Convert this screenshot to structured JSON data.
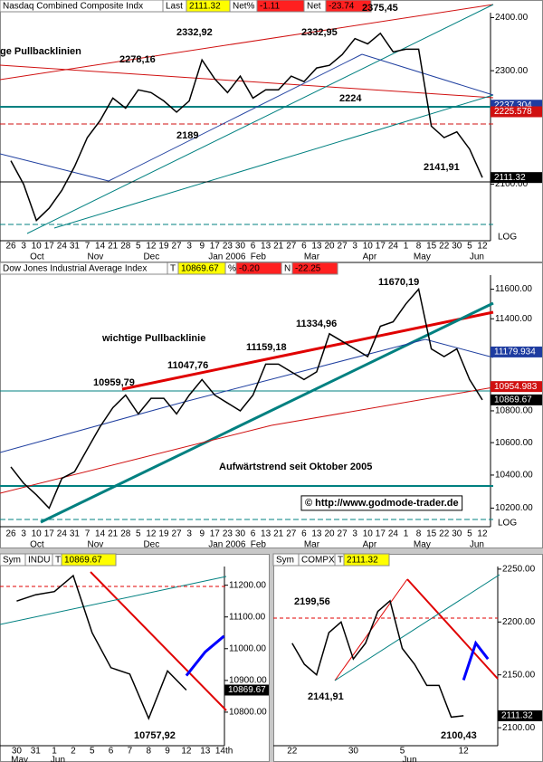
{
  "chart_data": [
    {
      "type": "line",
      "yscale": "log",
      "scale_label": "LOG",
      "header": [
        "Nasdaq Combined Composite Indx",
        "Last",
        "2111.32",
        "Net%",
        "-1.11",
        "Net",
        "-23.74"
      ],
      "categories": [
        "26",
        "3",
        "10",
        "17",
        "24",
        "31",
        "7",
        "14",
        "21",
        "28",
        "5",
        "12",
        "19",
        "27",
        "3",
        "9",
        "17",
        "23",
        "30",
        "6",
        "13",
        "21",
        "27",
        "6",
        "13",
        "20",
        "27",
        "3",
        "10",
        "17",
        "24",
        "1",
        "8",
        "15",
        "22",
        "30",
        "5",
        "12"
      ],
      "months": [
        "Oct",
        "Nov",
        "Dec",
        "Jan 2006",
        "Feb",
        "Mar",
        "Apr",
        "May",
        "Jun"
      ],
      "series": [
        {
          "color": "#000000",
          "values": [
            2140,
            2100,
            2040,
            2060,
            2090,
            2130,
            2180,
            2210,
            2250,
            2232,
            2265,
            2260,
            2245,
            2225,
            2245,
            2320,
            2285,
            2260,
            2290,
            2250,
            2265,
            2265,
            2290,
            2280,
            2305,
            2310,
            2330,
            2360,
            2350,
            2370,
            2335,
            2340,
            2340,
            2200,
            2180,
            2190,
            2160,
            2111.32
          ]
        }
      ],
      "ylim": [
        2010,
        2406
      ],
      "yticks": [
        {
          "value": 2100,
          "label": "2100.00"
        },
        {
          "value": 2300,
          "label": "2300.00"
        },
        {
          "value": 2400,
          "label": "2400.00"
        }
      ],
      "markers": [
        {
          "value": 2237.304,
          "color": "#1e3ca0"
        },
        {
          "value": 2225.578,
          "color": "#d01010"
        },
        {
          "value": 2111.32,
          "color": "#000000"
        }
      ],
      "annotations": [
        "ge Pullbacklinien",
        "2278,16",
        "2332,92",
        "2332,95",
        "2375,45",
        "2224",
        "2189",
        "2141,91"
      ]
    },
    {
      "type": "line",
      "yscale": "log",
      "scale_label": "LOG",
      "header": [
        "Dow Jones Industrial Average Index",
        "T",
        "10869.67",
        "%",
        "-0.20",
        "N",
        "-22.25"
      ],
      "categories": [
        "26",
        "3",
        "10",
        "17",
        "24",
        "31",
        "7",
        "14",
        "21",
        "28",
        "5",
        "12",
        "19",
        "27",
        "3",
        "9",
        "17",
        "23",
        "30",
        "6",
        "13",
        "21",
        "27",
        "6",
        "13",
        "20",
        "27",
        "3",
        "10",
        "17",
        "24",
        "1",
        "8",
        "15",
        "22",
        "30",
        "5",
        "12"
      ],
      "months": [
        "Oct",
        "Nov",
        "Dec",
        "Jan 2006",
        "Feb",
        "Mar",
        "Apr",
        "May",
        "Jun"
      ],
      "series": [
        {
          "color": "#000000",
          "values": [
            10450,
            10350,
            10280,
            10200,
            10380,
            10420,
            10560,
            10700,
            10820,
            10900,
            10780,
            10880,
            10880,
            10780,
            10900,
            11000,
            10900,
            10850,
            10800,
            10900,
            11100,
            11100,
            11050,
            11000,
            11050,
            11300,
            11250,
            11200,
            11150,
            11350,
            11380,
            11500,
            11600,
            11200,
            11150,
            11200,
            11000,
            10869.67
          ]
        }
      ],
      "ylim": [
        10100,
        11690
      ],
      "yticks": [
        {
          "value": 10200,
          "label": "10200.00"
        },
        {
          "value": 10400,
          "label": "10400.00"
        },
        {
          "value": 10600,
          "label": "10600.00"
        },
        {
          "value": 10800,
          "label": "10800.00"
        },
        {
          "value": 11400,
          "label": "11400.00"
        },
        {
          "value": 11600,
          "label": "11600.00"
        }
      ],
      "markers": [
        {
          "value": 11179.934,
          "color": "#1e3ca0"
        },
        {
          "value": 10954.983,
          "color": "#d01010"
        },
        {
          "value": 10869.67,
          "color": "#000000"
        }
      ],
      "annotations": [
        "11670,19",
        "11334,96",
        "11159,18",
        "11047,76",
        "10959,79",
        "wichtige Pullbacklinie",
        "Aufwärtstrend seit Oktober 2005",
        "© http://www.godmode-trader.de"
      ]
    },
    {
      "type": "line",
      "yscale": "linear",
      "header": [
        "Sym",
        "INDU",
        "T",
        "10869.67"
      ],
      "categories": [
        "30",
        "31",
        "1",
        "2",
        "5",
        "6",
        "7",
        "8",
        "9",
        "12",
        "13",
        "14th"
      ],
      "months": [
        "May",
        "Jun"
      ],
      "series": [
        {
          "color": "#000000",
          "values": [
            11150,
            11170,
            11180,
            11230,
            11050,
            10940,
            10920,
            10780,
            10930,
            10869.67,
            null,
            null
          ]
        },
        {
          "color": "#0000ff",
          "values": [
            null,
            null,
            null,
            null,
            null,
            null,
            null,
            null,
            null,
            10915,
            10990,
            11040
          ]
        }
      ],
      "ylim": [
        10700,
        11256
      ],
      "yticks": [
        {
          "value": 10800,
          "label": "10800.00"
        },
        {
          "value": 10900,
          "label": "10900.00"
        },
        {
          "value": 11000,
          "label": "11000.00"
        },
        {
          "value": 11100,
          "label": "11100.00"
        },
        {
          "value": 11200,
          "label": "11200.00"
        }
      ],
      "markers": [
        {
          "value": 10869.67,
          "color": "#000000"
        }
      ],
      "annotations": [
        "10757,92"
      ]
    },
    {
      "type": "line",
      "yscale": "linear",
      "header": [
        "Sym",
        "COMPX",
        "T",
        "2111.32"
      ],
      "categories": [
        "22",
        null,
        null,
        null,
        null,
        "30",
        null,
        null,
        null,
        "5",
        null,
        null,
        null,
        null,
        "12",
        null,
        null
      ],
      "months": [
        "Jun"
      ],
      "series": [
        {
          "color": "#000000",
          "values": [
            2180,
            2160,
            2150,
            2190,
            2200,
            2165,
            2180,
            2210,
            2220,
            2175,
            2160,
            2140,
            2140,
            2110,
            2111.32,
            null,
            null
          ]
        },
        {
          "color": "#0000ff",
          "values": [
            null,
            null,
            null,
            null,
            null,
            null,
            null,
            null,
            null,
            null,
            null,
            null,
            null,
            null,
            2145,
            2180,
            2165
          ]
        }
      ],
      "ylim": [
        2084.7,
        2251.6
      ],
      "yticks": [
        {
          "value": 2100,
          "label": "2100.00"
        },
        {
          "value": 2150,
          "label": "2150.00"
        },
        {
          "value": 2200,
          "label": "2200.00"
        },
        {
          "value": 2250,
          "label": "2250.00"
        }
      ],
      "markers": [
        {
          "value": 2111.32,
          "color": "#000000"
        }
      ],
      "annotations": [
        "2199,56",
        "2141,91",
        "2100,43"
      ]
    }
  ]
}
